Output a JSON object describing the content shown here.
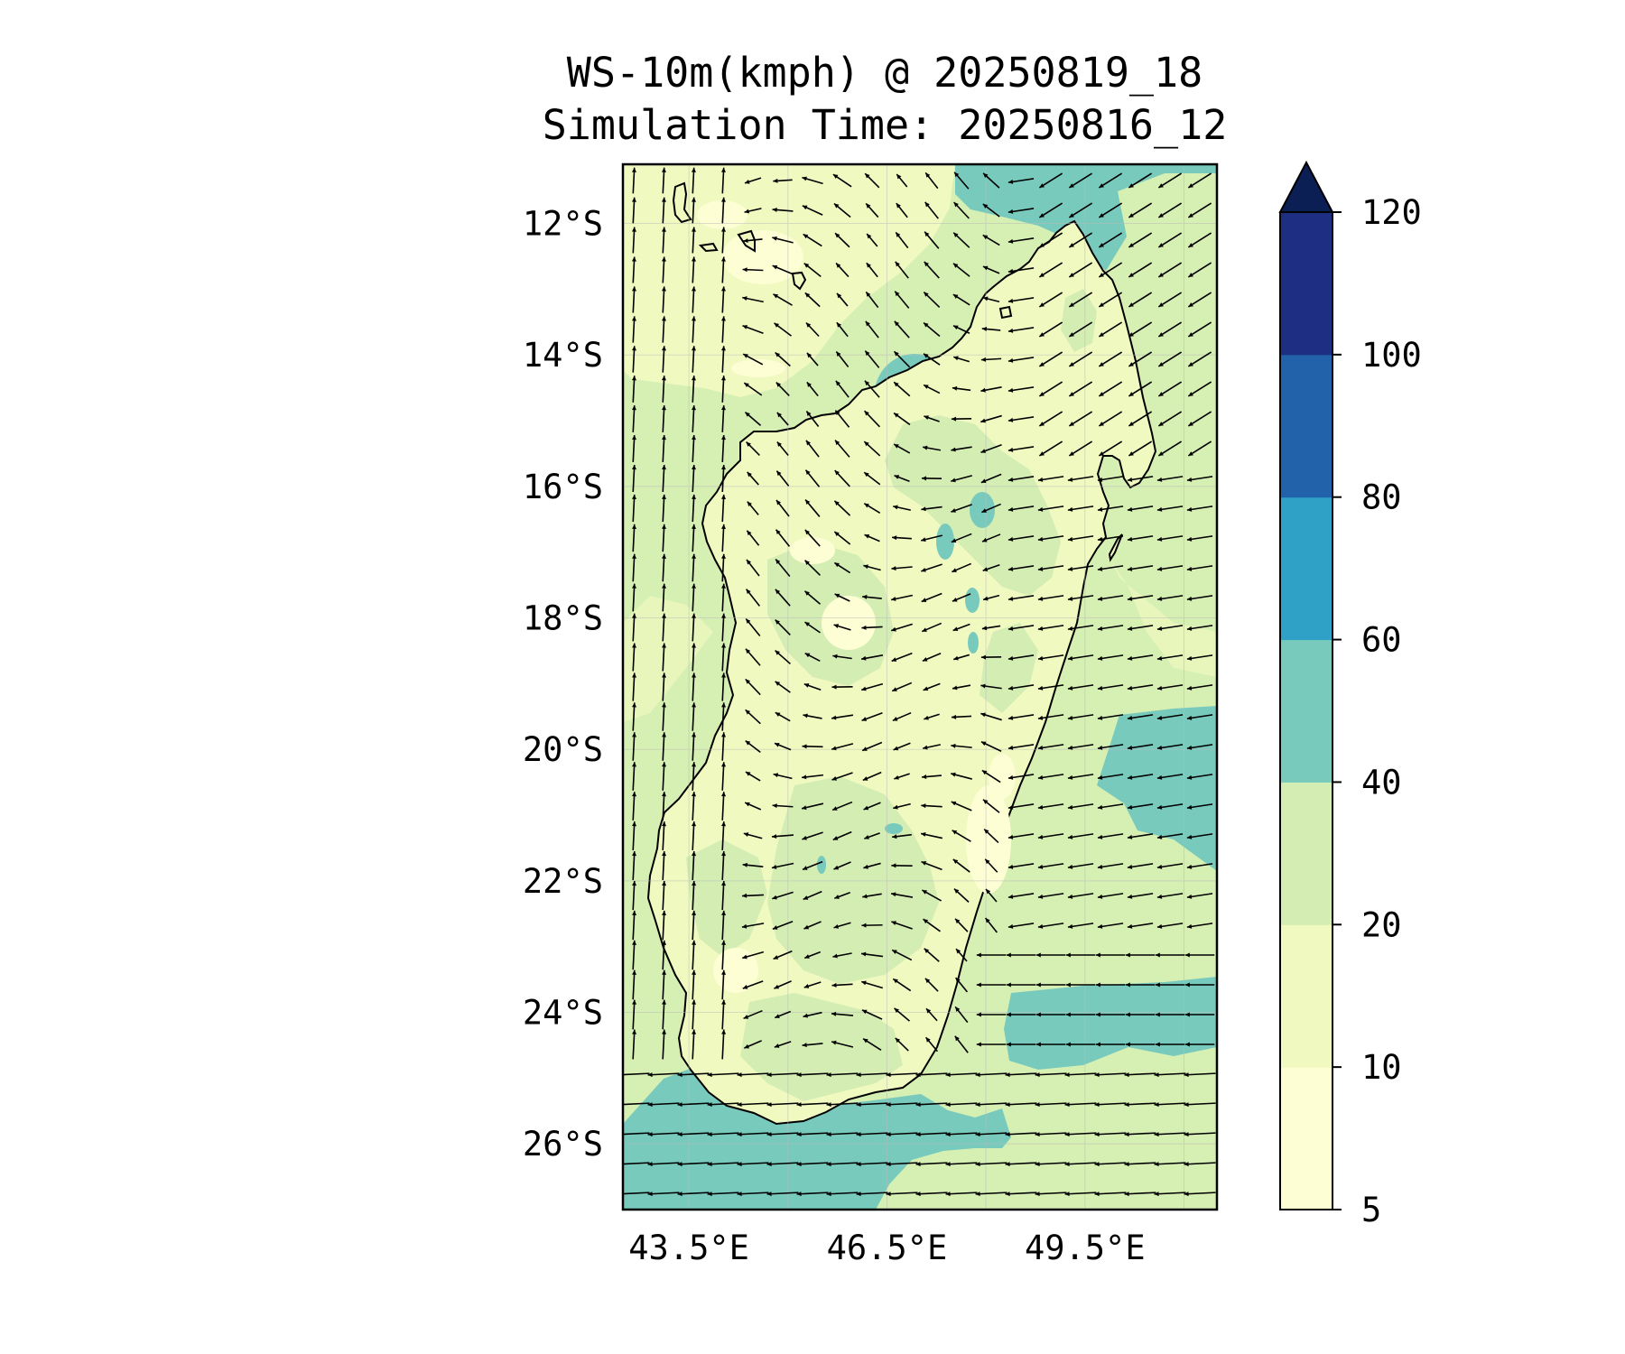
{
  "title": "WS-10m(kmph) @ 20250819_18",
  "subtitle": "Simulation Time: 20250816_12",
  "map": {
    "region": "Madagascar",
    "lon_range": [
      42.5,
      51.5
    ],
    "lat_range": [
      -27.0,
      -11.1
    ],
    "lat_ticks": [
      {
        "value": -12,
        "label": "12°S"
      },
      {
        "value": -14,
        "label": "14°S"
      },
      {
        "value": -16,
        "label": "16°S"
      },
      {
        "value": -18,
        "label": "18°S"
      },
      {
        "value": -20,
        "label": "20°S"
      },
      {
        "value": -22,
        "label": "22°S"
      },
      {
        "value": -24,
        "label": "24°S"
      },
      {
        "value": -26,
        "label": "26°S"
      }
    ],
    "lon_ticks": [
      {
        "value": 43.5,
        "label": "43.5°E"
      },
      {
        "value": 46.5,
        "label": "46.5°E"
      },
      {
        "value": 49.5,
        "label": "49.5°E"
      }
    ],
    "gridlines": true,
    "field": "10 m wind speed (filled contours) with wind vectors",
    "colors": {
      "ocean_default": "#d6efb3",
      "land_default": "#f0f9c0",
      "coastline": "#000000"
    }
  },
  "colorbar": {
    "extend": "max",
    "levels": [
      {
        "value": 5,
        "label": "5"
      },
      {
        "value": 10,
        "label": "10"
      },
      {
        "value": 20,
        "label": "20"
      },
      {
        "value": 40,
        "label": "40"
      },
      {
        "value": 60,
        "label": "60"
      },
      {
        "value": 80,
        "label": "80"
      },
      {
        "value": 100,
        "label": "100"
      },
      {
        "value": 120,
        "label": "120"
      }
    ],
    "colors": [
      "#fdfed4",
      "#f0f9c0",
      "#d3edb3",
      "#78cabd",
      "#2fa1c7",
      "#2262aa",
      "#1d2e83",
      "#0b1f55"
    ]
  }
}
